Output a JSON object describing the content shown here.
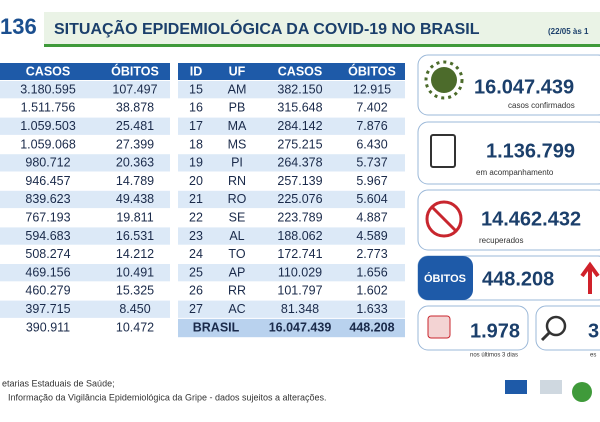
{
  "header": {
    "code": "136",
    "title": "SITUAÇÃO EPIDEMIOLÓGICA DA COVID-19 NO BRASIL",
    "date": "(22/05 às 1"
  },
  "left_table": {
    "columns": [
      "CASOS",
      "ÓBITOS"
    ],
    "rows": [
      [
        "3.180.595",
        "107.497"
      ],
      [
        "1.511.756",
        "38.878"
      ],
      [
        "1.059.503",
        "25.481"
      ],
      [
        "1.059.068",
        "27.399"
      ],
      [
        "980.712",
        "20.363"
      ],
      [
        "946.457",
        "14.789"
      ],
      [
        "839.623",
        "49.438"
      ],
      [
        "767.193",
        "19.811"
      ],
      [
        "594.683",
        "16.531"
      ],
      [
        "508.274",
        "14.212"
      ],
      [
        "469.156",
        "10.491"
      ],
      [
        "460.279",
        "15.325"
      ],
      [
        "397.715",
        "8.450"
      ],
      [
        "390.911",
        "10.472"
      ]
    ]
  },
  "right_table": {
    "columns": [
      "ID",
      "UF",
      "CASOS",
      "ÓBITOS"
    ],
    "rows": [
      [
        "15",
        "AM",
        "382.150",
        "12.915"
      ],
      [
        "16",
        "PB",
        "315.648",
        "7.402"
      ],
      [
        "17",
        "MA",
        "284.142",
        "7.876"
      ],
      [
        "18",
        "MS",
        "275.215",
        "6.430"
      ],
      [
        "19",
        "PI",
        "264.378",
        "5.737"
      ],
      [
        "20",
        "RN",
        "257.139",
        "5.967"
      ],
      [
        "21",
        "RO",
        "225.076",
        "5.604"
      ],
      [
        "22",
        "SE",
        "223.789",
        "4.887"
      ],
      [
        "23",
        "AL",
        "188.062",
        "4.589"
      ],
      [
        "24",
        "TO",
        "172.741",
        "2.773"
      ],
      [
        "25",
        "AP",
        "110.029",
        "1.656"
      ],
      [
        "26",
        "RR",
        "101.797",
        "1.602"
      ],
      [
        "27",
        "AC",
        "81.348",
        "1.633"
      ]
    ],
    "total": [
      "BRASIL",
      "16.047.439",
      "448.208"
    ]
  },
  "summary": {
    "confirmed": "16.047.439",
    "confirmed_label": "casos confirmados",
    "monitoring": "1.136.799",
    "monitoring_label": "em acompanhamento",
    "recovered": "14.462.432",
    "recovered_label": "recuperados",
    "deaths_label": "ÓBITOS",
    "deaths": "448.208",
    "recent": "1.978",
    "recent_label": "nos últimos 3 dias",
    "other": "3",
    "other_label": "es"
  },
  "footer": {
    "line1": "etarias Estaduais de Saúde;",
    "line2": "Informação da Vigilância Epidemiológica da Gripe - dados sujeitos a alterações."
  }
}
